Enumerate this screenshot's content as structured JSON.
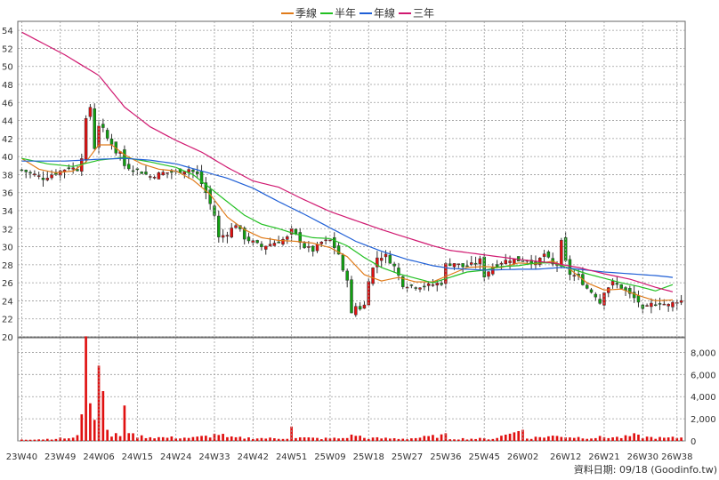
{
  "legend": [
    {
      "label": "季線",
      "color": "#e07b1a"
    },
    {
      "label": "半年",
      "color": "#22c022"
    },
    {
      "label": "年線",
      "color": "#1f5fd6"
    },
    {
      "label": "三年",
      "color": "#d01870"
    }
  ],
  "footer": {
    "text": "資料日期: 09/18  (Goodinfo.tw)"
  },
  "chart_data": {
    "type": "candlestick",
    "price_axis": {
      "ylim": [
        20,
        55
      ],
      "ticks": [
        20,
        22,
        24,
        26,
        28,
        30,
        32,
        34,
        36,
        38,
        40,
        42,
        44,
        46,
        48,
        50,
        52,
        54
      ]
    },
    "volume_axis": {
      "ylim": [
        0,
        9000
      ],
      "ticks": [
        0,
        2000,
        4000,
        6000,
        8000
      ],
      "tick_labels": [
        "0",
        "2,000",
        "4,000",
        "6,000",
        "8,000"
      ]
    },
    "x_ticks": [
      "23W40",
      "23W49",
      "24W06",
      "24W15",
      "24W24",
      "24W33",
      "24W42",
      "24W51",
      "25W09",
      "25W18",
      "25W27",
      "25W36",
      "25W45",
      "26W02",
      "26W12",
      "26W21",
      "26W30",
      "26W38"
    ],
    "x_tick_weeks": [
      0,
      9,
      18,
      27,
      36,
      45,
      54,
      63,
      72,
      81,
      90,
      99,
      108,
      117,
      127,
      136,
      145,
      153
    ],
    "n_weeks": 155,
    "close_keyframes": [
      [
        0,
        38.5
      ],
      [
        3,
        38.0
      ],
      [
        5,
        37.6
      ],
      [
        7,
        38.0
      ],
      [
        9,
        38.4
      ],
      [
        11,
        38.8
      ],
      [
        13,
        38.6
      ],
      [
        14,
        40.0
      ],
      [
        15,
        44.0
      ],
      [
        16,
        45.5
      ],
      [
        17,
        41.0
      ],
      [
        18,
        43.5
      ],
      [
        19,
        43.0
      ],
      [
        20,
        42.0
      ],
      [
        21,
        41.5
      ],
      [
        22,
        40.5
      ],
      [
        23,
        40.5
      ],
      [
        24,
        39.0
      ],
      [
        27,
        38.5
      ],
      [
        30,
        37.8
      ],
      [
        33,
        38.2
      ],
      [
        36,
        38.3
      ],
      [
        39,
        38.6
      ],
      [
        41,
        38.0
      ],
      [
        43,
        36.0
      ],
      [
        45,
        33.5
      ],
      [
        46,
        31.0
      ],
      [
        48,
        31.5
      ],
      [
        50,
        32.5
      ],
      [
        52,
        31.0
      ],
      [
        54,
        30.5
      ],
      [
        56,
        30.0
      ],
      [
        58,
        30.3
      ],
      [
        60,
        30.6
      ],
      [
        62,
        31.0
      ],
      [
        63,
        31.8
      ],
      [
        64,
        31.3
      ],
      [
        66,
        30.0
      ],
      [
        68,
        29.6
      ],
      [
        70,
        30.5
      ],
      [
        72,
        30.7
      ],
      [
        74,
        29.2
      ],
      [
        75,
        27.2
      ],
      [
        76,
        26.5
      ],
      [
        77,
        22.5
      ],
      [
        78,
        23.4
      ],
      [
        79,
        23.2
      ],
      [
        80,
        23.5
      ],
      [
        81,
        26.4
      ],
      [
        83,
        28.8
      ],
      [
        85,
        29.0
      ],
      [
        87,
        27.8
      ],
      [
        89,
        25.8
      ],
      [
        92,
        25.6
      ],
      [
        95,
        25.7
      ],
      [
        98,
        26.0
      ],
      [
        99,
        28.0
      ],
      [
        101,
        28.2
      ],
      [
        103,
        27.8
      ],
      [
        105,
        28.0
      ],
      [
        107,
        28.5
      ],
      [
        108,
        26.8
      ],
      [
        110,
        27.8
      ],
      [
        112,
        28.3
      ],
      [
        114,
        28.6
      ],
      [
        116,
        28.5
      ],
      [
        118,
        28.6
      ],
      [
        120,
        28.1
      ],
      [
        122,
        29.2
      ],
      [
        124,
        28.0
      ],
      [
        125,
        28.2
      ],
      [
        126,
        30.5
      ],
      [
        127,
        28.3
      ],
      [
        128,
        27.0
      ],
      [
        130,
        26.6
      ],
      [
        132,
        25.4
      ],
      [
        134,
        24.6
      ],
      [
        135,
        23.8
      ],
      [
        136,
        25.1
      ],
      [
        138,
        26.0
      ],
      [
        140,
        25.5
      ],
      [
        142,
        24.7
      ],
      [
        144,
        23.9
      ],
      [
        145,
        22.9
      ],
      [
        147,
        23.6
      ],
      [
        149,
        23.8
      ],
      [
        151,
        23.5
      ],
      [
        153,
        24.0
      ]
    ],
    "volume_keyframes": [
      [
        0,
        150
      ],
      [
        5,
        150
      ],
      [
        8,
        220
      ],
      [
        12,
        260
      ],
      [
        13,
        400
      ],
      [
        14,
        2400
      ],
      [
        15,
        9800
      ],
      [
        16,
        3400
      ],
      [
        17,
        1900
      ],
      [
        18,
        6800
      ],
      [
        19,
        4500
      ],
      [
        20,
        1000
      ],
      [
        21,
        500
      ],
      [
        22,
        700
      ],
      [
        23,
        600
      ],
      [
        24,
        3200
      ],
      [
        25,
        700
      ],
      [
        26,
        500
      ],
      [
        27,
        450
      ],
      [
        28,
        400
      ],
      [
        30,
        350
      ],
      [
        33,
        300
      ],
      [
        36,
        300
      ],
      [
        40,
        280
      ],
      [
        44,
        450
      ],
      [
        46,
        650
      ],
      [
        48,
        300
      ],
      [
        55,
        250
      ],
      [
        60,
        220
      ],
      [
        62,
        260
      ],
      [
        63,
        1300
      ],
      [
        64,
        300
      ],
      [
        70,
        220
      ],
      [
        75,
        240
      ],
      [
        78,
        550
      ],
      [
        80,
        260
      ],
      [
        90,
        200
      ],
      [
        99,
        500
      ],
      [
        100,
        200
      ],
      [
        110,
        200
      ],
      [
        117,
        1000
      ],
      [
        118,
        250
      ],
      [
        123,
        400
      ],
      [
        126,
        450
      ],
      [
        128,
        350
      ],
      [
        133,
        280
      ],
      [
        136,
        350
      ],
      [
        140,
        300
      ],
      [
        143,
        500
      ],
      [
        145,
        350
      ],
      [
        150,
        250
      ],
      [
        153,
        300
      ]
    ],
    "ma_keyframes": {
      "季線": [
        [
          0,
          39.8
        ],
        [
          4,
          38.6
        ],
        [
          8,
          38.2
        ],
        [
          12,
          38.4
        ],
        [
          15,
          39.4
        ],
        [
          18,
          41.3
        ],
        [
          21,
          41.3
        ],
        [
          24,
          40.2
        ],
        [
          28,
          39.2
        ],
        [
          32,
          38.6
        ],
        [
          36,
          38.4
        ],
        [
          40,
          37.4
        ],
        [
          44,
          35.8
        ],
        [
          48,
          33.3
        ],
        [
          52,
          31.9
        ],
        [
          56,
          31.0
        ],
        [
          60,
          30.7
        ],
        [
          64,
          30.6
        ],
        [
          68,
          30.4
        ],
        [
          72,
          29.9
        ],
        [
          76,
          28.9
        ],
        [
          80,
          26.9
        ],
        [
          84,
          26.2
        ],
        [
          88,
          26.6
        ],
        [
          92,
          26.1
        ],
        [
          96,
          26.1
        ],
        [
          100,
          26.9
        ],
        [
          104,
          27.7
        ],
        [
          108,
          27.8
        ],
        [
          112,
          27.7
        ],
        [
          116,
          28.2
        ],
        [
          120,
          28.1
        ],
        [
          124,
          28.4
        ],
        [
          128,
          27.5
        ],
        [
          132,
          26.0
        ],
        [
          136,
          25.2
        ],
        [
          140,
          25.3
        ],
        [
          144,
          24.6
        ],
        [
          148,
          24.0
        ],
        [
          152,
          24.1
        ]
      ],
      "半年": [
        [
          0,
          39.8
        ],
        [
          6,
          39.2
        ],
        [
          12,
          38.9
        ],
        [
          18,
          39.6
        ],
        [
          24,
          39.9
        ],
        [
          30,
          39.4
        ],
        [
          36,
          38.8
        ],
        [
          40,
          38.0
        ],
        [
          44,
          36.5
        ],
        [
          48,
          35.0
        ],
        [
          52,
          33.5
        ],
        [
          56,
          32.5
        ],
        [
          60,
          32.0
        ],
        [
          64,
          31.4
        ],
        [
          68,
          31.0
        ],
        [
          72,
          30.9
        ],
        [
          76,
          30.1
        ],
        [
          80,
          28.8
        ],
        [
          84,
          27.7
        ],
        [
          88,
          27.0
        ],
        [
          92,
          26.5
        ],
        [
          96,
          26.0
        ],
        [
          100,
          26.6
        ],
        [
          104,
          27.2
        ],
        [
          108,
          27.4
        ],
        [
          112,
          27.8
        ],
        [
          116,
          27.9
        ],
        [
          120,
          28.2
        ],
        [
          124,
          28.2
        ],
        [
          128,
          27.6
        ],
        [
          132,
          27.0
        ],
        [
          136,
          26.5
        ],
        [
          140,
          26.0
        ],
        [
          144,
          25.6
        ],
        [
          148,
          25.1
        ],
        [
          152,
          25.8
        ]
      ],
      "年線": [
        [
          0,
          39.5
        ],
        [
          10,
          39.5
        ],
        [
          18,
          39.7
        ],
        [
          24,
          39.8
        ],
        [
          30,
          39.6
        ],
        [
          36,
          39.2
        ],
        [
          42,
          38.4
        ],
        [
          48,
          37.6
        ],
        [
          54,
          36.5
        ],
        [
          60,
          35.0
        ],
        [
          66,
          33.6
        ],
        [
          72,
          32.1
        ],
        [
          78,
          30.6
        ],
        [
          84,
          29.5
        ],
        [
          90,
          28.6
        ],
        [
          96,
          27.9
        ],
        [
          100,
          27.6
        ],
        [
          108,
          27.4
        ],
        [
          116,
          27.5
        ],
        [
          120,
          27.5
        ],
        [
          126,
          27.7
        ],
        [
          130,
          27.5
        ],
        [
          136,
          27.2
        ],
        [
          142,
          27.0
        ],
        [
          148,
          26.8
        ],
        [
          152,
          26.6
        ]
      ],
      "三年": [
        [
          0,
          53.8
        ],
        [
          10,
          51.3
        ],
        [
          18,
          49.0
        ],
        [
          24,
          45.5
        ],
        [
          30,
          43.3
        ],
        [
          36,
          41.8
        ],
        [
          42,
          40.5
        ],
        [
          48,
          38.8
        ],
        [
          54,
          37.3
        ],
        [
          60,
          36.6
        ],
        [
          66,
          35.2
        ],
        [
          72,
          33.9
        ],
        [
          78,
          32.9
        ],
        [
          84,
          31.9
        ],
        [
          90,
          31.0
        ],
        [
          96,
          30.1
        ],
        [
          100,
          29.6
        ],
        [
          108,
          29.1
        ],
        [
          116,
          28.6
        ],
        [
          124,
          28.2
        ],
        [
          130,
          27.7
        ],
        [
          136,
          27.0
        ],
        [
          142,
          26.4
        ],
        [
          148,
          25.5
        ],
        [
          152,
          25.0
        ]
      ]
    }
  }
}
